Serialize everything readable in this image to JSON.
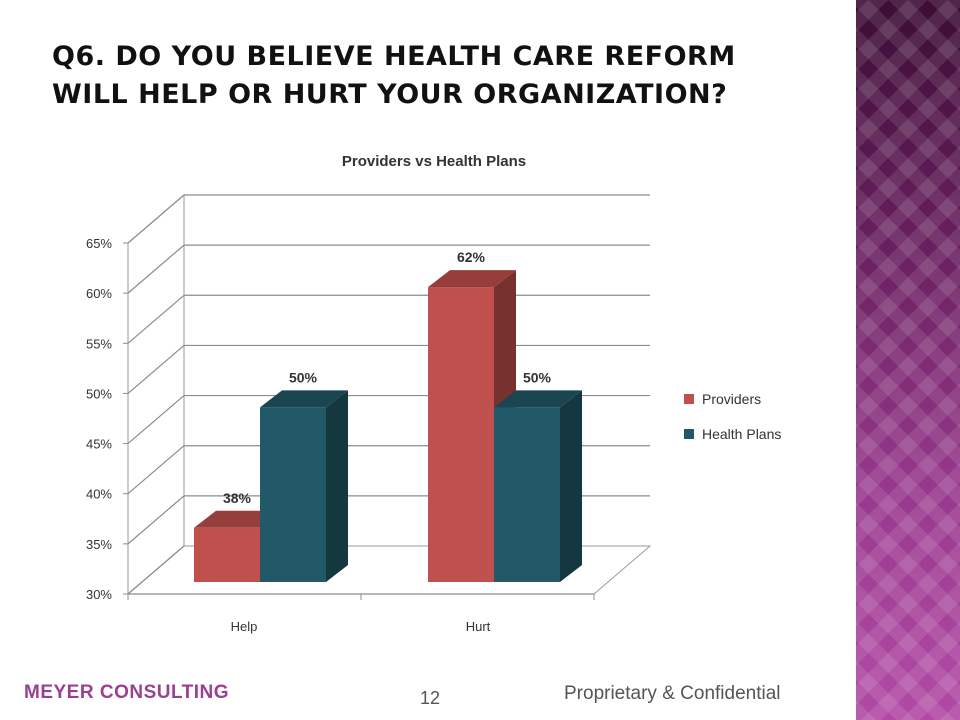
{
  "slide": {
    "title": "Q6.  Do you believe health care reform will help or hurt your organization?",
    "footer_left": "MEYER CONSULTING",
    "page_number": "12",
    "footer_right": "Proprietary & Confidential"
  },
  "colors": {
    "providers": "#c0504d",
    "health_plans": "#215968",
    "accent": "#9b3f92"
  },
  "chart_data": {
    "type": "bar",
    "title": "Providers vs Health Plans",
    "categories": [
      "Help",
      "Hurt"
    ],
    "series": [
      {
        "name": "Providers",
        "values": [
          38,
          62
        ]
      },
      {
        "name": "Health Plans",
        "values": [
          50,
          50
        ]
      }
    ],
    "data_labels": [
      [
        "38%",
        "62%"
      ],
      [
        "50%",
        "50%"
      ]
    ],
    "ylim": [
      30,
      65
    ],
    "yticks": [
      "30%",
      "35%",
      "40%",
      "45%",
      "50%",
      "55%",
      "60%",
      "65%"
    ],
    "grid": true,
    "legend": "right",
    "three_d": true
  }
}
